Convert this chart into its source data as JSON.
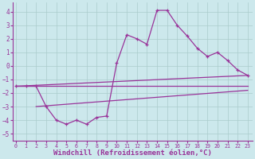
{
  "background_color": "#cce8ec",
  "grid_color": "#aacccc",
  "line_color": "#993399",
  "xlabel": "Windchill (Refroidissement éolien,°C)",
  "xlabel_fontsize": 6.5,
  "yticks": [
    -5,
    -4,
    -3,
    -2,
    -1,
    0,
    1,
    2,
    3,
    4
  ],
  "xticks": [
    0,
    1,
    2,
    3,
    4,
    5,
    6,
    7,
    8,
    9,
    10,
    11,
    12,
    13,
    14,
    15,
    16,
    17,
    18,
    19,
    20,
    21,
    22,
    23
  ],
  "xlim": [
    -0.3,
    23.5
  ],
  "ylim": [
    -5.5,
    4.7
  ],
  "series1_x": [
    0,
    1,
    2,
    3,
    4,
    5,
    6,
    7,
    8,
    9,
    10,
    11,
    12,
    13,
    14,
    15,
    16,
    17,
    18,
    19,
    20,
    21,
    22,
    23
  ],
  "series1_y": [
    -1.5,
    -1.5,
    -1.5,
    -3.0,
    -4.0,
    -4.3,
    -4.0,
    -4.3,
    -3.8,
    -3.7,
    0.2,
    2.3,
    2.0,
    1.6,
    4.1,
    4.1,
    3.0,
    2.2,
    1.3,
    0.7,
    1.0,
    0.4,
    -0.3,
    -0.7
  ],
  "line1_x": [
    0,
    23
  ],
  "line1_y": [
    -1.5,
    -0.7
  ],
  "line2_x": [
    0,
    23
  ],
  "line2_y": [
    -1.5,
    -1.5
  ],
  "line3_x": [
    2,
    23
  ],
  "line3_y": [
    -3.0,
    -1.8
  ]
}
